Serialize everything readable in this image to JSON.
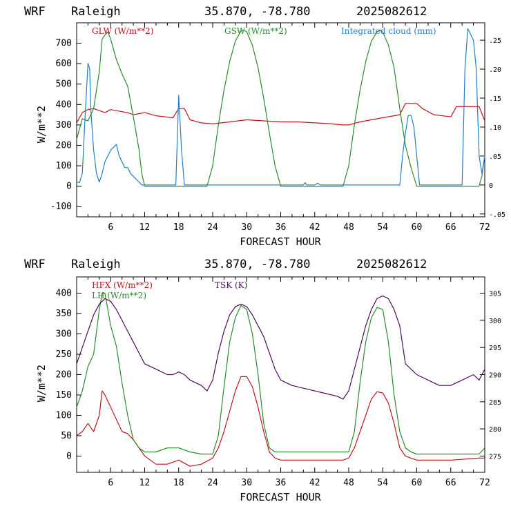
{
  "panels": [
    {
      "header": {
        "model": "WRF",
        "site": "Raleigh",
        "coords": "35.870, -78.780",
        "init": "2025082612"
      },
      "ylabel": "W/m**2",
      "xlabel": "FORECAST HOUR",
      "xticks": [
        "6",
        "12",
        "18",
        "24",
        "30",
        "36",
        "42",
        "48",
        "54",
        "60",
        "66",
        "72"
      ],
      "yticks": [
        "-100",
        "0",
        "100",
        "200",
        "300",
        "400",
        "500",
        "600",
        "700"
      ],
      "y2ticks": [
        "-.05",
        "0",
        ".05",
        ".10",
        ".15",
        ".20",
        ".25"
      ],
      "legend": [
        {
          "label": "GLW (W/m**2)",
          "color": "#c0151d"
        },
        {
          "label": "GSW (W/m**2)",
          "color": "#2b8a2b"
        },
        {
          "label": "Integrated cloud (mm)",
          "color": "#1e7fd0"
        }
      ]
    },
    {
      "header": {
        "model": "WRF",
        "site": "Raleigh",
        "coords": "35.870, -78.780",
        "init": "2025082612"
      },
      "ylabel": "W/m**2",
      "xlabel": "FORECAST HOUR",
      "xticks": [
        "6",
        "12",
        "18",
        "24",
        "30",
        "36",
        "42",
        "48",
        "54",
        "60",
        "66",
        "72"
      ],
      "yticks": [
        "0",
        "50",
        "100",
        "150",
        "200",
        "250",
        "300",
        "350",
        "400"
      ],
      "y2ticks": [
        "275",
        "280",
        "285",
        "290",
        "295",
        "300",
        "305"
      ],
      "legend": [
        {
          "label": "HFX (W/m**2)",
          "color": "#c0151d"
        },
        {
          "label": "LH  (W/m**2)",
          "color": "#2b8a2b"
        },
        {
          "label": "TSK (K)",
          "color": "#4b0a5a"
        }
      ]
    }
  ],
  "chart_data": [
    {
      "type": "line",
      "title": "WRF Raleigh 35.870, -78.780 2025082612",
      "xlabel": "FORECAST HOUR",
      "ylabel": "W/m**2",
      "xlim": [
        0,
        72
      ],
      "ylim": [
        -150,
        800
      ],
      "y2lim": [
        -0.055,
        0.28
      ],
      "series": [
        {
          "name": "GLW (W/m**2)",
          "color": "#c0151d",
          "axis": "left",
          "x": [
            0,
            1,
            2,
            3,
            4,
            5,
            6,
            7,
            8,
            9,
            10,
            11,
            12,
            14,
            17,
            18,
            19,
            20,
            22,
            24,
            27,
            30,
            33,
            36,
            39,
            42,
            45,
            47,
            48,
            50,
            52,
            54,
            56,
            57,
            58,
            60,
            61,
            63,
            66,
            67,
            69,
            71,
            72
          ],
          "y": [
            310,
            360,
            375,
            380,
            370,
            360,
            375,
            370,
            365,
            360,
            350,
            355,
            360,
            345,
            335,
            380,
            380,
            325,
            310,
            305,
            315,
            325,
            320,
            315,
            315,
            310,
            305,
            300,
            300,
            315,
            325,
            335,
            345,
            350,
            405,
            405,
            380,
            350,
            340,
            390,
            390,
            390,
            320
          ]
        },
        {
          "name": "GSW (W/m**2)",
          "color": "#2b8a2b",
          "axis": "left",
          "x": [
            0,
            1,
            2,
            3,
            4,
            4.5,
            5,
            5.5,
            6,
            7,
            8,
            9,
            10,
            11,
            11.5,
            12,
            23,
            24,
            25,
            26,
            27,
            28,
            29,
            29.5,
            30,
            31,
            32,
            33,
            34,
            35,
            36,
            47,
            48,
            49,
            50,
            51,
            52,
            53,
            53.5,
            54,
            55,
            56,
            57,
            58,
            59,
            60,
            71,
            71.5,
            72
          ],
          "y": [
            230,
            330,
            320,
            380,
            560,
            720,
            740,
            755,
            720,
            620,
            550,
            490,
            340,
            180,
            60,
            0,
            0,
            100,
            300,
            470,
            610,
            710,
            760,
            765,
            755,
            690,
            580,
            430,
            260,
            100,
            0,
            0,
            100,
            300,
            470,
            610,
            710,
            755,
            765,
            755,
            690,
            580,
            380,
            200,
            90,
            0,
            0,
            50,
            150
          ]
        },
        {
          "name": "Integrated cloud (mm)",
          "color": "#1e7fd0",
          "axis": "right",
          "x": [
            0,
            0.5,
            1,
            1.5,
            2,
            2.3,
            2.5,
            3,
            3.5,
            4,
            4.5,
            5,
            6,
            6.5,
            7,
            7.5,
            8,
            8.5,
            9,
            9.5,
            10,
            10.5,
            11,
            11.5,
            12,
            17.5,
            18,
            18.5,
            19,
            19.5,
            40,
            40.3,
            40.6,
            42,
            42.5,
            43,
            57,
            57.5,
            58,
            58.5,
            59,
            59.5,
            60,
            60.5,
            68,
            68.5,
            69,
            69.5,
            70,
            70.5,
            71,
            71.5,
            72
          ],
          "y": [
            0.005,
            0.004,
            0.02,
            0.12,
            0.21,
            0.2,
            0.13,
            0.06,
            0.02,
            0.005,
            0.02,
            0.04,
            0.06,
            0.065,
            0.07,
            0.05,
            0.04,
            0.03,
            0.03,
            0.02,
            0.015,
            0.01,
            0.005,
            0,
            0,
            0,
            0.155,
            0.06,
            0,
            0,
            0,
            0.004,
            0,
            0,
            0.003,
            0,
            0,
            0.05,
            0.09,
            0.12,
            0.12,
            0.1,
            0.05,
            0,
            0,
            0.2,
            0.27,
            0.26,
            0.25,
            0.2,
            0.05,
            0.02,
            0.05
          ]
        }
      ]
    },
    {
      "type": "line",
      "title": "WRF Raleigh 35.870, -78.780 2025082612",
      "xlabel": "FORECAST HOUR",
      "ylabel": "W/m**2",
      "xlim": [
        0,
        72
      ],
      "ylim": [
        -40,
        440
      ],
      "y2lim": [
        272,
        308
      ],
      "series": [
        {
          "name": "HFX (W/m**2)",
          "color": "#c0151d",
          "axis": "left",
          "x": [
            0,
            1,
            2,
            3,
            4,
            4.5,
            5,
            6,
            7,
            8,
            9,
            10,
            11,
            12,
            14,
            16,
            18,
            20,
            22,
            24,
            25,
            26,
            27,
            28,
            29,
            30,
            31,
            32,
            33,
            34,
            35,
            36,
            42,
            47,
            48,
            49,
            50,
            51,
            52,
            53,
            54,
            55,
            56,
            57,
            58,
            59,
            60,
            66,
            71,
            72
          ],
          "y": [
            50,
            60,
            80,
            60,
            100,
            160,
            150,
            120,
            90,
            60,
            55,
            40,
            20,
            0,
            -20,
            -20,
            -10,
            -25,
            -20,
            -5,
            20,
            60,
            110,
            160,
            195,
            195,
            170,
            120,
            60,
            10,
            -5,
            -10,
            -10,
            -10,
            -5,
            20,
            60,
            100,
            140,
            158,
            155,
            130,
            80,
            20,
            0,
            -5,
            -10,
            -10,
            -5,
            -5
          ]
        },
        {
          "name": "LH  (W/m**2)",
          "color": "#2b8a2b",
          "axis": "left",
          "x": [
            0,
            1,
            2,
            3,
            4,
            4.5,
            5,
            6,
            7,
            8,
            9,
            10,
            11,
            12,
            14,
            16,
            18,
            20,
            22,
            24,
            25,
            26,
            27,
            28,
            29,
            30,
            31,
            32,
            33,
            34,
            35,
            36,
            42,
            47,
            48,
            49,
            50,
            51,
            52,
            53,
            54,
            55,
            56,
            57,
            58,
            59,
            60,
            66,
            71,
            72
          ],
          "y": [
            120,
            160,
            220,
            250,
            360,
            400,
            400,
            320,
            270,
            180,
            100,
            40,
            20,
            10,
            10,
            20,
            20,
            10,
            5,
            5,
            50,
            170,
            280,
            340,
            370,
            360,
            300,
            200,
            80,
            20,
            10,
            10,
            10,
            10,
            10,
            60,
            180,
            280,
            340,
            365,
            360,
            280,
            150,
            60,
            20,
            10,
            5,
            5,
            5,
            20
          ]
        },
        {
          "name": "TSK (K)",
          "color": "#4b0a5a",
          "axis": "right",
          "x": [
            0,
            1,
            2,
            3,
            4,
            5,
            6,
            7,
            8,
            9,
            10,
            11,
            12,
            14,
            16,
            17,
            18,
            19,
            20,
            22,
            23,
            24,
            25,
            26,
            27,
            28,
            29,
            30,
            31,
            32,
            33,
            34,
            35,
            36,
            38,
            40,
            42,
            44,
            46,
            47,
            48,
            49,
            50,
            51,
            52,
            53,
            54,
            55,
            56,
            57,
            58,
            60,
            62,
            64,
            66,
            68,
            70,
            71,
            72
          ],
          "y": [
            292,
            295,
            298,
            301,
            303,
            304,
            303.5,
            302,
            300,
            298,
            296,
            294,
            292,
            291,
            290,
            290,
            290.5,
            290,
            289,
            288,
            287,
            289,
            294,
            298,
            301,
            302.5,
            303,
            302.5,
            301,
            299,
            297,
            294,
            291,
            289,
            288,
            287.5,
            287,
            286.5,
            286,
            285.5,
            287,
            291,
            295,
            299,
            302,
            304,
            304.5,
            304,
            302,
            299,
            292,
            290,
            289,
            288,
            288,
            289,
            290,
            289,
            291
          ]
        }
      ]
    }
  ]
}
